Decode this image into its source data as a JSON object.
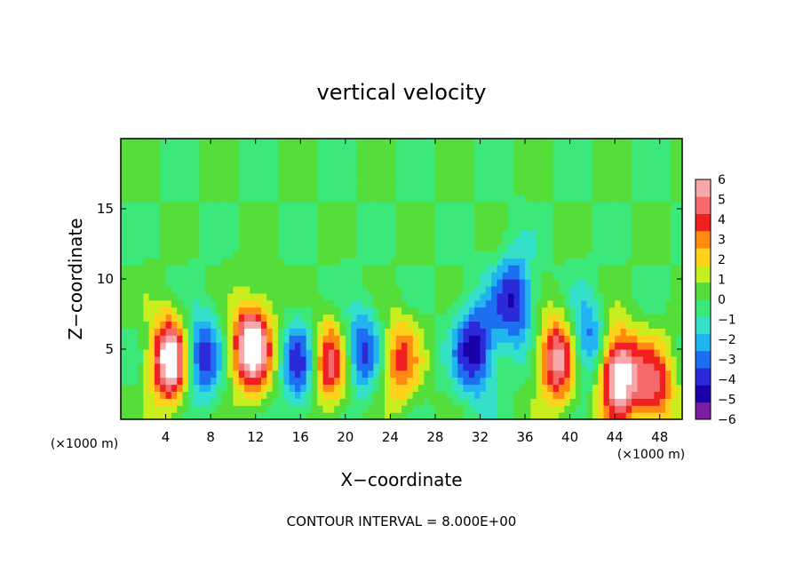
{
  "chart_data": {
    "type": "heatmap",
    "title": "vertical velocity",
    "xlabel": "X−coordinate",
    "ylabel": "Z−coordinate",
    "x_unit_left": "(×1000 m)",
    "x_unit_right": "(×1000 m)",
    "footer": "CONTOUR INTERVAL = 8.000E+00",
    "xlim": [
      0,
      50
    ],
    "ylim": [
      0,
      20
    ],
    "x_ticks": [
      4,
      8,
      12,
      16,
      20,
      24,
      28,
      32,
      36,
      40,
      44,
      48
    ],
    "x_tick_labels": [
      "4",
      "8",
      "12",
      "16",
      "20",
      "24",
      "28",
      "32",
      "36",
      "40",
      "44",
      "48"
    ],
    "y_ticks": [
      5,
      10,
      15
    ],
    "y_tick_labels": [
      "5",
      "10",
      "15"
    ],
    "colorbar": {
      "min": -6,
      "max": 6,
      "tick_labels": [
        "6",
        "5",
        "4",
        "3",
        "2",
        "1",
        "0",
        "−1",
        "−2",
        "−3",
        "−4",
        "−5",
        "−6"
      ],
      "colors": [
        "#7a1fa2",
        "#1a00a8",
        "#2a2ad8",
        "#1e6ef0",
        "#22b4f0",
        "#35e0c8",
        "#3ce87a",
        "#55dd3a",
        "#c8ee20",
        "#ffd21c",
        "#ff8c10",
        "#f02020",
        "#f46a6a",
        "#f8a8a8"
      ]
    },
    "features": [
      {
        "x": 4.5,
        "z": 4.3,
        "w": 0.9
      },
      {
        "x": 11.7,
        "z": 5.2,
        "w": 0.9
      },
      {
        "x": 18.5,
        "z": 4.0,
        "w": 0.6
      },
      {
        "x": 24.8,
        "z": 4.2,
        "w": 0.45
      },
      {
        "x": 31.5,
        "z": 5.0,
        "w": -0.6
      },
      {
        "x": 35.0,
        "z": 8.5,
        "w": -0.55
      },
      {
        "x": 39.0,
        "z": 4.3,
        "w": 0.7
      },
      {
        "x": 44.3,
        "z": 3.2,
        "w": 0.9
      },
      {
        "x": 47.5,
        "z": 2.3,
        "w": 0.55
      },
      {
        "x": 7.0,
        "z": 4.5,
        "w": -0.55
      },
      {
        "x": 16.0,
        "z": 4.0,
        "w": -0.5
      },
      {
        "x": 21.5,
        "z": 5.0,
        "w": -0.45
      },
      {
        "x": 41.5,
        "z": 5.5,
        "w": -0.45
      }
    ]
  }
}
